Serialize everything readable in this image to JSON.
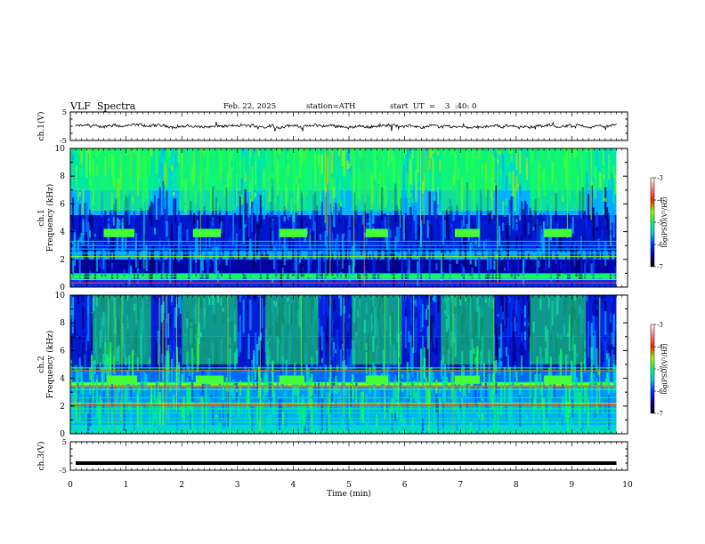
{
  "header": {
    "title": "VLF  Spectra",
    "date": "Feb. 22, 2025",
    "station": "station=ATH",
    "start_ut": "start  UT  =    3  :40: 0"
  },
  "chart_data": [
    {
      "id": "ch1-waveform",
      "type": "line",
      "ylabel": "ch.1(V)",
      "yticks": [
        "5",
        "-5"
      ],
      "ylim": [
        -5,
        5
      ],
      "xlim": [
        0,
        10
      ],
      "description_level": "noisy waveform around 0 V, range about -1 to 1 V",
      "line_color": "#000000"
    },
    {
      "id": "ch1-spectrogram",
      "type": "heatmap",
      "ylabel": "ch.1\nFrequency (kHz)",
      "ylabel_lines": [
        "ch.1",
        "Frequency  (kHz)"
      ],
      "yticks": [
        "0",
        "2",
        "4",
        "6",
        "8",
        "10"
      ],
      "ylim": [
        0,
        10
      ],
      "xlim": [
        0,
        10
      ],
      "data_end_min": 9.8,
      "colorbar": {
        "label": "log(PSD)(V²/Hz)",
        "ticks": [
          "-3",
          "-4",
          "-5",
          "-6",
          "-7"
        ],
        "range": [
          -7,
          -3
        ]
      },
      "tone_blocks_min": [
        [
          0.6,
          1.15
        ],
        [
          2.2,
          2.7
        ],
        [
          3.75,
          4.25
        ],
        [
          5.3,
          5.7
        ],
        [
          6.9,
          7.35
        ],
        [
          8.5,
          9.0
        ]
      ],
      "tone_block_freq_khz": [
        3.6,
        4.2
      ]
    },
    {
      "id": "ch2-spectrogram",
      "type": "heatmap",
      "ylabel_lines": [
        "ch.2",
        "Frequency  (kHz)"
      ],
      "yticks": [
        "0",
        "2",
        "4",
        "6",
        "8",
        "10"
      ],
      "ylim": [
        0,
        10
      ],
      "xlim": [
        0,
        10
      ],
      "data_end_min": 9.8,
      "colorbar": {
        "label": "log(PSD)(V²/Hz)",
        "ticks": [
          "-3",
          "-4",
          "-5",
          "-6",
          "-7"
        ],
        "range": [
          -7,
          -3
        ]
      },
      "tone_blocks_min": [
        [
          0.65,
          1.2
        ],
        [
          2.25,
          2.75
        ],
        [
          3.75,
          4.2
        ],
        [
          5.3,
          5.7
        ],
        [
          6.9,
          7.35
        ],
        [
          8.5,
          9.0
        ]
      ],
      "tone_block_freq_khz": [
        3.6,
        4.2
      ]
    },
    {
      "id": "ch3-waveform",
      "type": "line",
      "ylabel": "ch.3(V)",
      "yticks": [
        "5",
        "-5"
      ],
      "ylim": [
        -5,
        5
      ],
      "xlim": [
        0,
        10
      ],
      "level_v": -2.5,
      "line_color": "#000000"
    }
  ],
  "xaxis": {
    "label": "Time  (min)",
    "ticks": [
      "0",
      "1",
      "2",
      "3",
      "4",
      "5",
      "6",
      "7",
      "8",
      "9",
      "10"
    ]
  }
}
